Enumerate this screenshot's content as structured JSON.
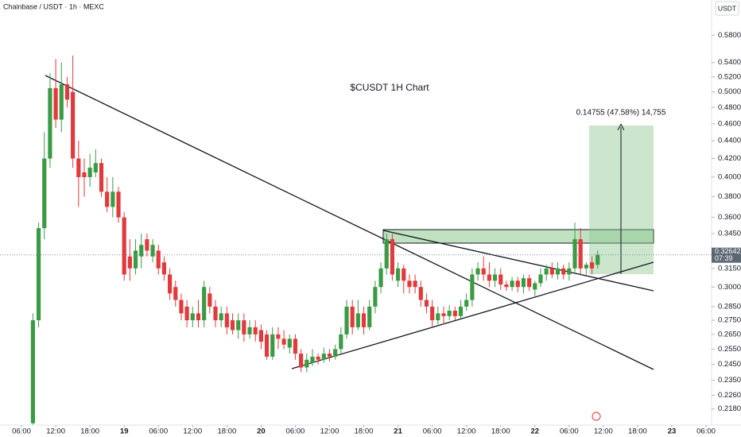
{
  "header": {
    "symbol_line": "Chainbase / USDT · 1h · MEXC",
    "currency": "USDT"
  },
  "chart_data": {
    "type": "candlestick",
    "title": "$CUSDT 1H Chart",
    "log_scale": true,
    "colors": {
      "up": "#3a9b44",
      "down": "#e2393c"
    },
    "xlim": [
      -5.77,
      118.97
    ],
    "ylim": [
      0.209,
      0.636
    ],
    "xticks": [
      {
        "value": -2,
        "label": "06:00"
      },
      {
        "value": 4,
        "label": "12:00"
      },
      {
        "value": 10,
        "label": "18:00"
      },
      {
        "value": 16,
        "label": "19"
      },
      {
        "value": 22,
        "label": "06:00"
      },
      {
        "value": 28,
        "label": "12:00"
      },
      {
        "value": 34,
        "label": "18:00"
      },
      {
        "value": 40,
        "label": "20"
      },
      {
        "value": 46,
        "label": "06:00"
      },
      {
        "value": 52,
        "label": "12:00"
      },
      {
        "value": 58,
        "label": "18:00"
      },
      {
        "value": 64,
        "label": "21"
      },
      {
        "value": 70,
        "label": "06:00"
      },
      {
        "value": 76,
        "label": "12:00"
      },
      {
        "value": 82,
        "label": "18:00"
      },
      {
        "value": 88,
        "label": "22"
      },
      {
        "value": 94,
        "label": "06:00"
      },
      {
        "value": 100,
        "label": "12:00"
      },
      {
        "value": 106,
        "label": "18:00"
      },
      {
        "value": 112,
        "label": "23"
      },
      {
        "value": 118,
        "label": "06:00"
      }
    ],
    "yticks": [
      {
        "value": 0.58,
        "label": "0.58000"
      },
      {
        "value": 0.54,
        "label": "0.54000"
      },
      {
        "value": 0.52,
        "label": "0.52000"
      },
      {
        "value": 0.5,
        "label": "0.50000"
      },
      {
        "value": 0.48,
        "label": "0.48000"
      },
      {
        "value": 0.46,
        "label": "0.46000"
      },
      {
        "value": 0.44,
        "label": "0.44000"
      },
      {
        "value": 0.42,
        "label": "0.42000"
      },
      {
        "value": 0.4,
        "label": "0.40000"
      },
      {
        "value": 0.38,
        "label": "0.38000"
      },
      {
        "value": 0.36,
        "label": "0.36000"
      },
      {
        "value": 0.345,
        "label": "0.34500"
      },
      {
        "value": 0.315,
        "label": "0.31500"
      },
      {
        "value": 0.3,
        "label": "0.30000"
      },
      {
        "value": 0.285,
        "label": "0.28500"
      },
      {
        "value": 0.275,
        "label": "0.27500"
      },
      {
        "value": 0.265,
        "label": "0.26500"
      },
      {
        "value": 0.255,
        "label": "0.25500"
      },
      {
        "value": 0.245,
        "label": "0.24500"
      },
      {
        "value": 0.235,
        "label": "0.23500"
      },
      {
        "value": 0.226,
        "label": "0.22600"
      },
      {
        "value": 0.218,
        "label": "0.21800"
      }
    ],
    "open": [
      0.21,
      0.275,
      0.35,
      0.42,
      0.505,
      0.465,
      0.51,
      0.5,
      0.42,
      0.405,
      0.4,
      0.405,
      0.415,
      0.385,
      0.37,
      0.385,
      0.36,
      0.325,
      0.315,
      0.325,
      0.34,
      0.325,
      0.33,
      0.32,
      0.31,
      0.3,
      0.29,
      0.285,
      0.275,
      0.28,
      0.275,
      0.295,
      0.285,
      0.275,
      0.28,
      0.275,
      0.268,
      0.275,
      0.265,
      0.27,
      0.268,
      0.265,
      0.25,
      0.265,
      0.262,
      0.256,
      0.262,
      0.252,
      0.243,
      0.246,
      0.25,
      0.248,
      0.252,
      0.25,
      0.255,
      0.265,
      0.285,
      0.27,
      0.28,
      0.27,
      0.285,
      0.3,
      0.315,
      0.34,
      0.305,
      0.315,
      0.305,
      0.305,
      0.3,
      0.29,
      0.285,
      0.275,
      0.28,
      0.278,
      0.282,
      0.278,
      0.285,
      0.29,
      0.31,
      0.315,
      0.31,
      0.305,
      0.31,
      0.302,
      0.3,
      0.305,
      0.3,
      0.307,
      0.298,
      0.303,
      0.31,
      0.315,
      0.31,
      0.315,
      0.31,
      0.315,
      0.34,
      0.315,
      0.32,
      0.318
    ],
    "high": [
      0.28,
      0.355,
      0.45,
      0.525,
      0.545,
      0.54,
      0.52,
      0.55,
      0.44,
      0.42,
      0.425,
      0.43,
      0.42,
      0.4,
      0.4,
      0.39,
      0.365,
      0.34,
      0.34,
      0.345,
      0.345,
      0.34,
      0.335,
      0.325,
      0.315,
      0.305,
      0.295,
      0.29,
      0.285,
      0.29,
      0.305,
      0.3,
      0.29,
      0.285,
      0.285,
      0.28,
      0.28,
      0.28,
      0.275,
      0.275,
      0.272,
      0.268,
      0.27,
      0.27,
      0.268,
      0.265,
      0.265,
      0.255,
      0.252,
      0.255,
      0.252,
      0.256,
      0.255,
      0.258,
      0.27,
      0.29,
      0.29,
      0.29,
      0.285,
      0.29,
      0.305,
      0.32,
      0.345,
      0.345,
      0.32,
      0.318,
      0.31,
      0.31,
      0.305,
      0.295,
      0.29,
      0.285,
      0.285,
      0.286,
      0.285,
      0.29,
      0.295,
      0.315,
      0.32,
      0.325,
      0.32,
      0.315,
      0.315,
      0.305,
      0.308,
      0.308,
      0.31,
      0.31,
      0.305,
      0.315,
      0.318,
      0.32,
      0.32,
      0.318,
      0.32,
      0.355,
      0.35,
      0.32,
      0.325,
      0.33
    ],
    "low": [
      0.209,
      0.27,
      0.34,
      0.41,
      0.455,
      0.45,
      0.48,
      0.41,
      0.37,
      0.38,
      0.39,
      0.4,
      0.38,
      0.365,
      0.36,
      0.355,
      0.305,
      0.305,
      0.31,
      0.315,
      0.325,
      0.32,
      0.31,
      0.305,
      0.29,
      0.285,
      0.275,
      0.27,
      0.27,
      0.27,
      0.27,
      0.28,
      0.27,
      0.27,
      0.265,
      0.265,
      0.262,
      0.26,
      0.262,
      0.26,
      0.255,
      0.248,
      0.248,
      0.255,
      0.255,
      0.252,
      0.248,
      0.24,
      0.24,
      0.244,
      0.245,
      0.246,
      0.247,
      0.248,
      0.252,
      0.262,
      0.265,
      0.268,
      0.265,
      0.268,
      0.28,
      0.295,
      0.31,
      0.305,
      0.3,
      0.295,
      0.295,
      0.295,
      0.285,
      0.28,
      0.27,
      0.272,
      0.272,
      0.275,
      0.275,
      0.276,
      0.282,
      0.285,
      0.305,
      0.305,
      0.3,
      0.3,
      0.298,
      0.297,
      0.297,
      0.296,
      0.295,
      0.297,
      0.293,
      0.3,
      0.305,
      0.307,
      0.306,
      0.306,
      0.305,
      0.312,
      0.31,
      0.31,
      0.31,
      0.315
    ],
    "close": [
      0.275,
      0.35,
      0.42,
      0.505,
      0.465,
      0.51,
      0.49,
      0.42,
      0.4,
      0.4,
      0.41,
      0.415,
      0.385,
      0.37,
      0.385,
      0.36,
      0.31,
      0.315,
      0.33,
      0.335,
      0.33,
      0.335,
      0.315,
      0.31,
      0.295,
      0.29,
      0.28,
      0.275,
      0.28,
      0.275,
      0.3,
      0.285,
      0.275,
      0.28,
      0.27,
      0.268,
      0.275,
      0.265,
      0.27,
      0.265,
      0.26,
      0.25,
      0.265,
      0.262,
      0.258,
      0.262,
      0.252,
      0.243,
      0.248,
      0.25,
      0.248,
      0.252,
      0.25,
      0.255,
      0.265,
      0.285,
      0.27,
      0.28,
      0.27,
      0.285,
      0.3,
      0.315,
      0.34,
      0.31,
      0.315,
      0.305,
      0.3,
      0.3,
      0.29,
      0.285,
      0.275,
      0.28,
      0.278,
      0.282,
      0.278,
      0.285,
      0.29,
      0.31,
      0.315,
      0.31,
      0.305,
      0.31,
      0.302,
      0.3,
      0.305,
      0.3,
      0.307,
      0.3,
      0.303,
      0.31,
      0.315,
      0.31,
      0.315,
      0.31,
      0.315,
      0.34,
      0.315,
      0.318,
      0.315,
      0.3264
    ],
    "last_price_label": "0.32642",
    "countdown": "07:39",
    "measure_label": "0.14755 (47.58%) 14,755"
  }
}
